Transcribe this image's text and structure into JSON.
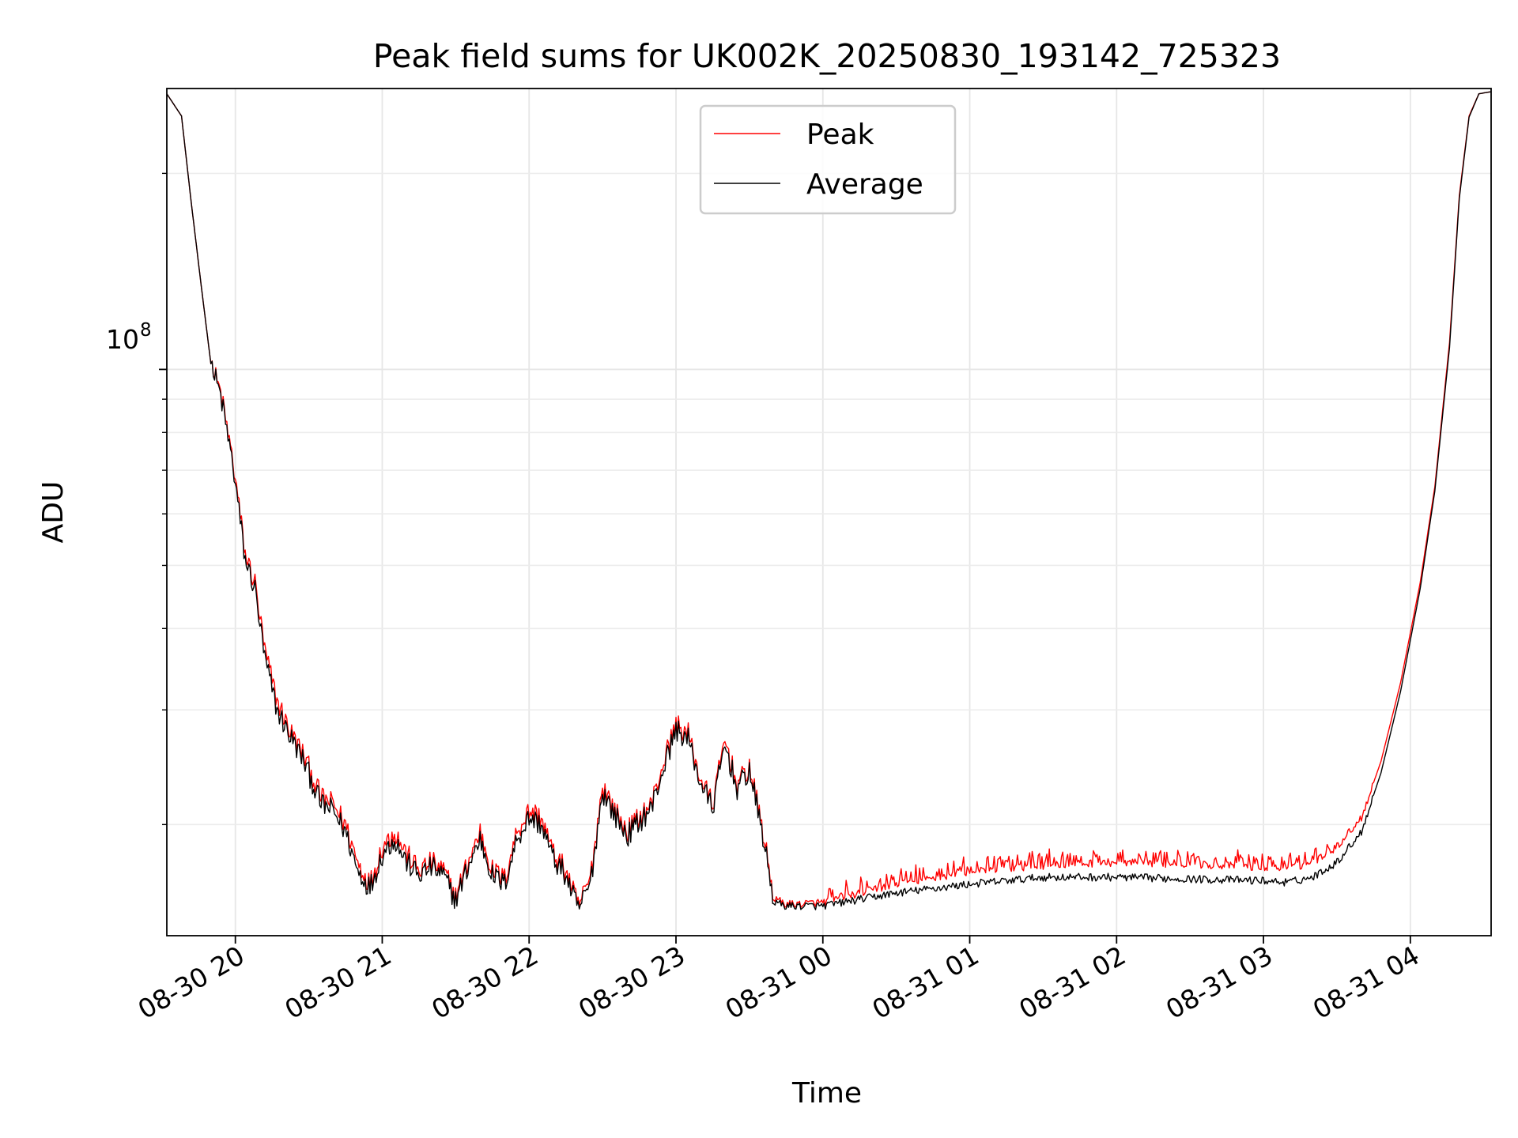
{
  "chart_data": {
    "type": "line",
    "title": "Peak field sums for UK002K_20250830_193142_725323",
    "xlabel": "Time",
    "ylabel": "ADU",
    "x_ticks": [
      "08-30 20",
      "08-30 21",
      "08-30 22",
      "08-30 23",
      "08-31 00",
      "08-31 01",
      "08-31 02",
      "08-31 03",
      "08-31 04"
    ],
    "x_range": [
      "2025-08-30 19:32",
      "2025-08-31 04:33"
    ],
    "y_scale": "log",
    "y_range": [
      13500000,
      270000000
    ],
    "y_major_tick_label": "10^8",
    "y_major_tick_value": 100000000,
    "grid": true,
    "legend_position": "top-center",
    "colors": {
      "peak": "#ff0000",
      "average": "#000000"
    },
    "series": [
      {
        "name": "Peak",
        "color": "#ff0000",
        "points": [
          [
            "2025-08-30 19:32",
            265000000
          ],
          [
            "2025-08-30 19:38",
            245000000
          ],
          [
            "2025-08-30 19:42",
            180000000
          ],
          [
            "2025-08-30 19:46",
            135000000
          ],
          [
            "2025-08-30 19:50",
            102000000
          ],
          [
            "2025-08-30 19:54",
            92000000
          ],
          [
            "2025-08-30 19:58",
            76000000
          ],
          [
            "2025-08-30 20:00",
            68000000
          ],
          [
            "2025-08-30 20:04",
            52000000
          ],
          [
            "2025-08-30 20:08",
            47000000
          ],
          [
            "2025-08-30 20:12",
            37000000
          ],
          [
            "2025-08-30 20:17",
            31000000
          ],
          [
            "2025-08-30 20:22",
            28000000
          ],
          [
            "2025-08-30 20:28",
            25500000
          ],
          [
            "2025-08-30 20:35",
            22000000
          ],
          [
            "2025-08-30 20:40",
            21500000
          ],
          [
            "2025-08-30 20:45",
            20000000
          ],
          [
            "2025-08-30 20:50",
            17500000
          ],
          [
            "2025-08-30 20:55",
            16200000
          ],
          [
            "2025-08-30 21:00",
            18500000
          ],
          [
            "2025-08-30 21:05",
            19500000
          ],
          [
            "2025-08-30 21:10",
            18000000
          ],
          [
            "2025-08-30 21:15",
            17000000
          ],
          [
            "2025-08-30 21:20",
            17500000
          ],
          [
            "2025-08-30 21:25",
            17000000
          ],
          [
            "2025-08-30 21:30",
            15500000
          ],
          [
            "2025-08-30 21:35",
            17500000
          ],
          [
            "2025-08-30 21:40",
            19500000
          ],
          [
            "2025-08-30 21:45",
            17000000
          ],
          [
            "2025-08-30 21:50",
            16500000
          ],
          [
            "2025-08-30 21:55",
            19500000
          ],
          [
            "2025-08-30 22:00",
            21000000
          ],
          [
            "2025-08-30 22:05",
            20500000
          ],
          [
            "2025-08-30 22:10",
            18000000
          ],
          [
            "2025-08-30 22:15",
            17000000
          ],
          [
            "2025-08-30 22:20",
            15000000
          ],
          [
            "2025-08-30 22:25",
            16500000
          ],
          [
            "2025-08-30 22:30",
            23000000
          ],
          [
            "2025-08-30 22:35",
            21000000
          ],
          [
            "2025-08-30 22:40",
            19500000
          ],
          [
            "2025-08-30 22:45",
            20500000
          ],
          [
            "2025-08-30 22:50",
            21500000
          ],
          [
            "2025-08-30 22:55",
            25000000
          ],
          [
            "2025-08-30 23:00",
            28500000
          ],
          [
            "2025-08-30 23:05",
            27500000
          ],
          [
            "2025-08-30 23:10",
            23500000
          ],
          [
            "2025-08-30 23:15",
            21500000
          ],
          [
            "2025-08-30 23:20",
            27000000
          ],
          [
            "2025-08-30 23:25",
            23000000
          ],
          [
            "2025-08-30 23:30",
            24500000
          ],
          [
            "2025-08-30 23:35",
            20000000
          ],
          [
            "2025-08-30 23:40",
            15400000
          ],
          [
            "2025-08-30 23:45",
            15100000
          ],
          [
            "2025-08-30 23:50",
            15100000
          ],
          [
            "2025-08-31 00:00",
            15200000
          ],
          [
            "2025-08-31 00:30",
            16200000
          ],
          [
            "2025-08-31 01:00",
            16900000
          ],
          [
            "2025-08-31 01:30",
            17300000
          ],
          [
            "2025-08-31 02:00",
            17500000
          ],
          [
            "2025-08-31 02:30",
            17400000
          ],
          [
            "2025-08-31 03:00",
            17200000
          ],
          [
            "2025-08-31 03:10",
            17100000
          ],
          [
            "2025-08-31 03:20",
            17500000
          ],
          [
            "2025-08-31 03:30",
            18500000
          ],
          [
            "2025-08-31 03:40",
            20500000
          ],
          [
            "2025-08-31 03:48",
            25000000
          ],
          [
            "2025-08-31 03:56",
            33000000
          ],
          [
            "2025-08-31 04:04",
            47000000
          ],
          [
            "2025-08-31 04:10",
            66000000
          ],
          [
            "2025-08-31 04:16",
            110000000
          ],
          [
            "2025-08-31 04:20",
            185000000
          ],
          [
            "2025-08-31 04:24",
            245000000
          ],
          [
            "2025-08-31 04:28",
            265000000
          ],
          [
            "2025-08-31 04:33",
            267000000
          ]
        ]
      },
      {
        "name": "Average",
        "color": "#000000",
        "points": [
          [
            "2025-08-30 19:32",
            265000000
          ],
          [
            "2025-08-30 19:38",
            245000000
          ],
          [
            "2025-08-30 19:42",
            180000000
          ],
          [
            "2025-08-30 19:46",
            135000000
          ],
          [
            "2025-08-30 19:50",
            102000000
          ],
          [
            "2025-08-30 19:54",
            91000000
          ],
          [
            "2025-08-30 19:58",
            75000000
          ],
          [
            "2025-08-30 20:00",
            67000000
          ],
          [
            "2025-08-30 20:04",
            51000000
          ],
          [
            "2025-08-30 20:08",
            46000000
          ],
          [
            "2025-08-30 20:12",
            36000000
          ],
          [
            "2025-08-30 20:17",
            30000000
          ],
          [
            "2025-08-30 20:22",
            27500000
          ],
          [
            "2025-08-30 20:28",
            25000000
          ],
          [
            "2025-08-30 20:35",
            21500000
          ],
          [
            "2025-08-30 20:40",
            21000000
          ],
          [
            "2025-08-30 20:45",
            19500000
          ],
          [
            "2025-08-30 20:50",
            17000000
          ],
          [
            "2025-08-30 20:55",
            16000000
          ],
          [
            "2025-08-30 21:00",
            18000000
          ],
          [
            "2025-08-30 21:05",
            19000000
          ],
          [
            "2025-08-30 21:10",
            17500000
          ],
          [
            "2025-08-30 21:15",
            16700000
          ],
          [
            "2025-08-30 21:20",
            17200000
          ],
          [
            "2025-08-30 21:25",
            16700000
          ],
          [
            "2025-08-30 21:30",
            15300000
          ],
          [
            "2025-08-30 21:35",
            17200000
          ],
          [
            "2025-08-30 21:40",
            19000000
          ],
          [
            "2025-08-30 21:45",
            16700000
          ],
          [
            "2025-08-30 21:50",
            16200000
          ],
          [
            "2025-08-30 21:55",
            19000000
          ],
          [
            "2025-08-30 22:00",
            20500000
          ],
          [
            "2025-08-30 22:05",
            20000000
          ],
          [
            "2025-08-30 22:10",
            17700000
          ],
          [
            "2025-08-30 22:15",
            16700000
          ],
          [
            "2025-08-30 22:20",
            14800000
          ],
          [
            "2025-08-30 22:25",
            16200000
          ],
          [
            "2025-08-30 22:30",
            22500000
          ],
          [
            "2025-08-30 22:35",
            20700000
          ],
          [
            "2025-08-30 22:40",
            19200000
          ],
          [
            "2025-08-30 22:45",
            20200000
          ],
          [
            "2025-08-30 22:50",
            21200000
          ],
          [
            "2025-08-30 22:55",
            24500000
          ],
          [
            "2025-08-30 23:00",
            28000000
          ],
          [
            "2025-08-30 23:05",
            27000000
          ],
          [
            "2025-08-30 23:10",
            23200000
          ],
          [
            "2025-08-30 23:15",
            21200000
          ],
          [
            "2025-08-30 23:20",
            26500000
          ],
          [
            "2025-08-30 23:25",
            22700000
          ],
          [
            "2025-08-30 23:30",
            24200000
          ],
          [
            "2025-08-30 23:35",
            19700000
          ],
          [
            "2025-08-30 23:40",
            15200000
          ],
          [
            "2025-08-30 23:45",
            15000000
          ],
          [
            "2025-08-30 23:50",
            15000000
          ],
          [
            "2025-08-31 00:00",
            15000000
          ],
          [
            "2025-08-31 00:30",
            15700000
          ],
          [
            "2025-08-31 01:00",
            16200000
          ],
          [
            "2025-08-31 01:30",
            16600000
          ],
          [
            "2025-08-31 02:00",
            16600000
          ],
          [
            "2025-08-31 02:30",
            16500000
          ],
          [
            "2025-08-31 03:00",
            16400000
          ],
          [
            "2025-08-31 03:10",
            16300000
          ],
          [
            "2025-08-31 03:20",
            16600000
          ],
          [
            "2025-08-31 03:30",
            17500000
          ],
          [
            "2025-08-31 03:40",
            19500000
          ],
          [
            "2025-08-31 03:48",
            24000000
          ],
          [
            "2025-08-31 03:56",
            32000000
          ],
          [
            "2025-08-31 04:04",
            46000000
          ],
          [
            "2025-08-31 04:10",
            65000000
          ],
          [
            "2025-08-31 04:16",
            108000000
          ],
          [
            "2025-08-31 04:20",
            183000000
          ],
          [
            "2025-08-31 04:24",
            244000000
          ],
          [
            "2025-08-31 04:28",
            265000000
          ],
          [
            "2025-08-31 04:33",
            267000000
          ]
        ]
      }
    ]
  }
}
